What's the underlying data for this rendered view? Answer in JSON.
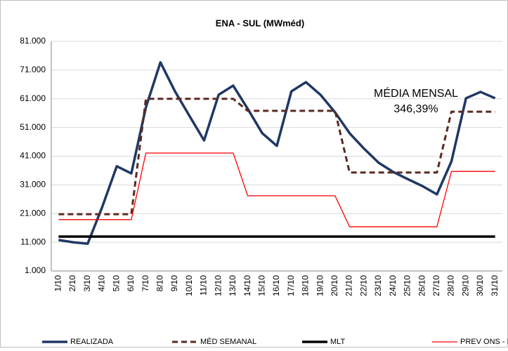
{
  "chart_data": {
    "type": "line",
    "title": "ENA - SUL (MWméd)",
    "categories": [
      "1/10",
      "2/10",
      "3/10",
      "4/10",
      "5/10",
      "6/10",
      "7/10",
      "8/10",
      "9/10",
      "10/10",
      "11/10",
      "12/10",
      "13/10",
      "14/10",
      "15/10",
      "16/10",
      "17/10",
      "18/10",
      "19/10",
      "20/10",
      "21/10",
      "22/10",
      "23/10",
      "24/10",
      "25/10",
      "26/10",
      "27/10",
      "28/10",
      "29/10",
      "30/10",
      "31/10"
    ],
    "series": [
      {
        "name": "REALIZADA",
        "color": "#1f3864",
        "width": 3.5,
        "dashed": false,
        "values": [
          11800,
          11000,
          10500,
          23300,
          37500,
          35000,
          58000,
          73700,
          63600,
          55000,
          46500,
          62400,
          65600,
          57500,
          49000,
          44600,
          63600,
          66800,
          62400,
          56300,
          49000,
          43600,
          38700,
          35500,
          33000,
          30600,
          27700,
          39200,
          61200,
          63400,
          61200
        ]
      },
      {
        "name": "MÉD SEMANAL",
        "color": "#5b2a22",
        "width": 3,
        "dashed": true,
        "values": [
          20800,
          20800,
          20800,
          20800,
          20800,
          20800,
          61000,
          61000,
          61000,
          61000,
          61000,
          61000,
          61000,
          56800,
          56800,
          56800,
          56800,
          56800,
          56800,
          56800,
          35300,
          35300,
          35300,
          35300,
          35300,
          35300,
          35300,
          56500,
          56500,
          56500,
          56500
        ]
      },
      {
        "name": "MLT",
        "color": "#000000",
        "width": 3.5,
        "dashed": false,
        "values": [
          13000,
          13000,
          13000,
          13000,
          13000,
          13000,
          13000,
          13000,
          13000,
          13000,
          13000,
          13000,
          13000,
          13000,
          13000,
          13000,
          13000,
          13000,
          13000,
          13000,
          13000,
          13000,
          13000,
          13000,
          13000,
          13000,
          13000,
          13000,
          13000,
          13000,
          13000
        ]
      },
      {
        "name": "PREV ONS - PMO",
        "color": "#ff0000",
        "width": 1.3,
        "dashed": false,
        "values": [
          18900,
          18900,
          18900,
          18900,
          18900,
          18900,
          42100,
          42100,
          42100,
          42100,
          42100,
          42100,
          42100,
          27200,
          27200,
          27200,
          27200,
          27200,
          27200,
          27200,
          16400,
          16400,
          16400,
          16400,
          16400,
          16400,
          16400,
          35700,
          35700,
          35700,
          35700
        ]
      }
    ],
    "ylim": [
      1000,
      81000
    ],
    "yticks": [
      {
        "value": 1000,
        "label": "1.000"
      },
      {
        "value": 11000,
        "label": "11.000"
      },
      {
        "value": 21000,
        "label": "21.000"
      },
      {
        "value": 31000,
        "label": "31.000"
      },
      {
        "value": 41000,
        "label": "41.000"
      },
      {
        "value": 51000,
        "label": "51.000"
      },
      {
        "value": 61000,
        "label": "61.000"
      },
      {
        "value": 71000,
        "label": "71.000"
      },
      {
        "value": 81000,
        "label": "81.000"
      }
    ],
    "grid": true,
    "annotation": [
      "MÉDIA MENSAL",
      "346,39%"
    ]
  }
}
